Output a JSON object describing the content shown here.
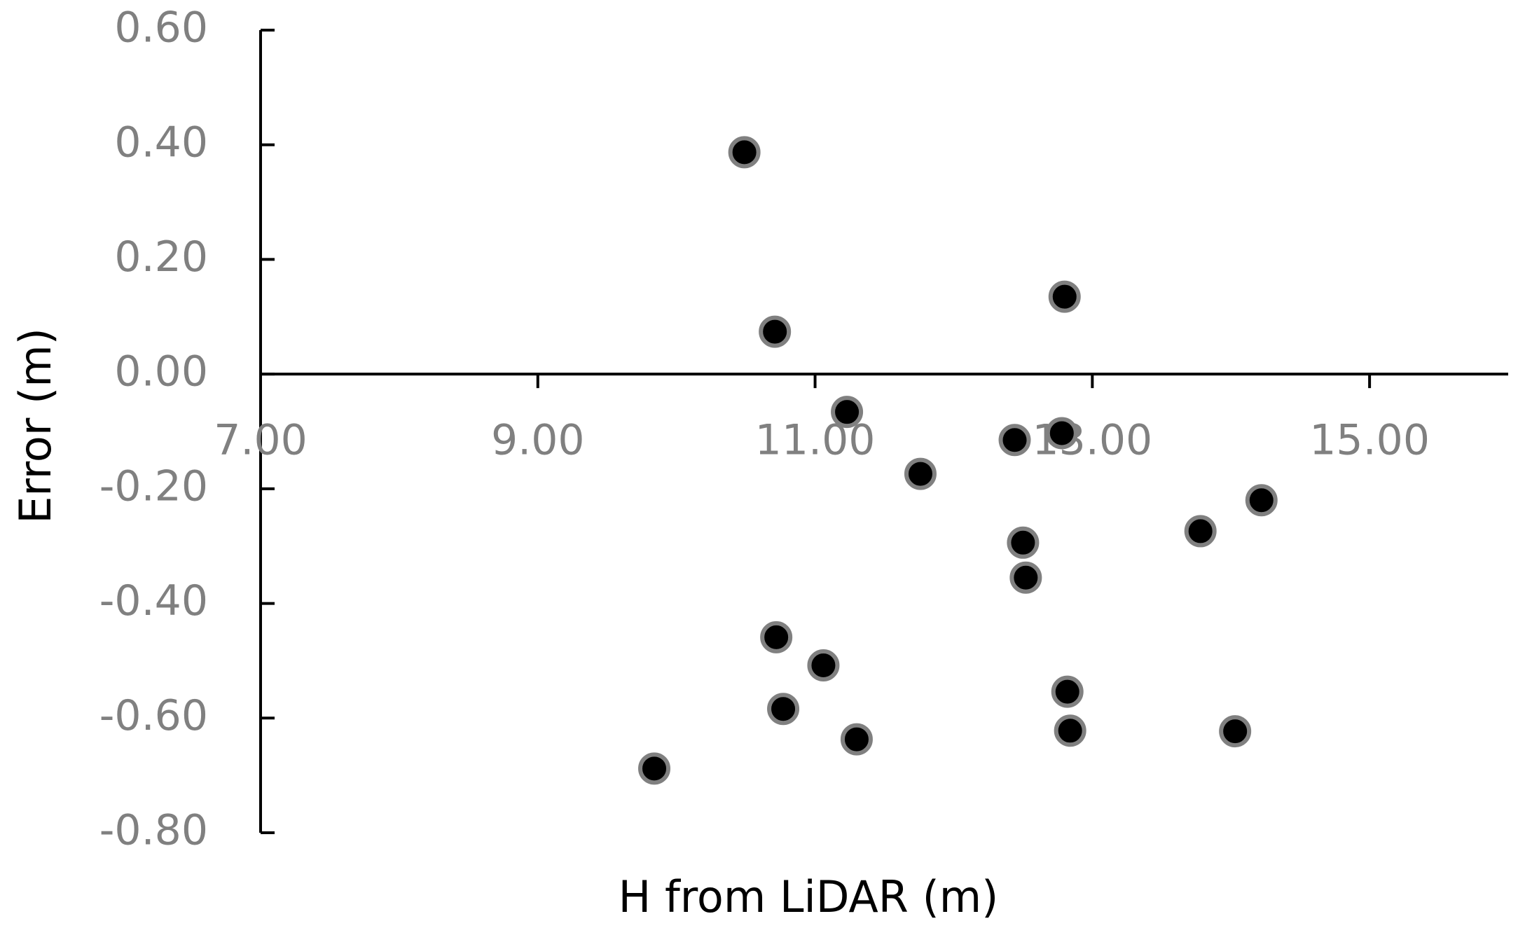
{
  "chart_data": {
    "type": "scatter",
    "x_label": "H from LiDAR (m)",
    "y_label": "Error (m)",
    "xlim": [
      7,
      16
    ],
    "ylim": [
      -0.8,
      0.6
    ],
    "xticks": [
      {
        "value": 7,
        "label": "7.00"
      },
      {
        "value": 9,
        "label": "9.00"
      },
      {
        "value": 11,
        "label": "11.00"
      },
      {
        "value": 13,
        "label": "13.00"
      },
      {
        "value": 15,
        "label": "15.00"
      }
    ],
    "yticks": [
      {
        "value": 0.6,
        "label": "0.60"
      },
      {
        "value": 0.4,
        "label": "0.40"
      },
      {
        "value": 0.2,
        "label": "0.20"
      },
      {
        "value": 0,
        "label": "0.00"
      },
      {
        "value": -0.2,
        "label": "-0.20"
      },
      {
        "value": -0.4,
        "label": "-0.40"
      },
      {
        "value": -0.6,
        "label": "-0.60"
      },
      {
        "value": -0.8,
        "label": "-0.80"
      }
    ],
    "grid": false,
    "series": [
      {
        "color": "#000000",
        "edge_color": "#808080",
        "x": [
          10.49,
          10.71,
          12.8,
          11.23,
          12.44,
          12.78,
          11.76,
          14.22,
          13.78,
          12.5,
          12.52,
          10.72,
          11.06,
          10.77,
          11.3,
          12.82,
          12.84,
          14.03,
          9.84
        ],
        "values": [
          0.387,
          0.074,
          0.135,
          -0.066,
          -0.115,
          -0.103,
          -0.174,
          -0.22,
          -0.274,
          -0.294,
          -0.355,
          -0.459,
          -0.508,
          -0.584,
          -0.637,
          -0.554,
          -0.622,
          -0.623,
          -0.688
        ]
      }
    ]
  }
}
